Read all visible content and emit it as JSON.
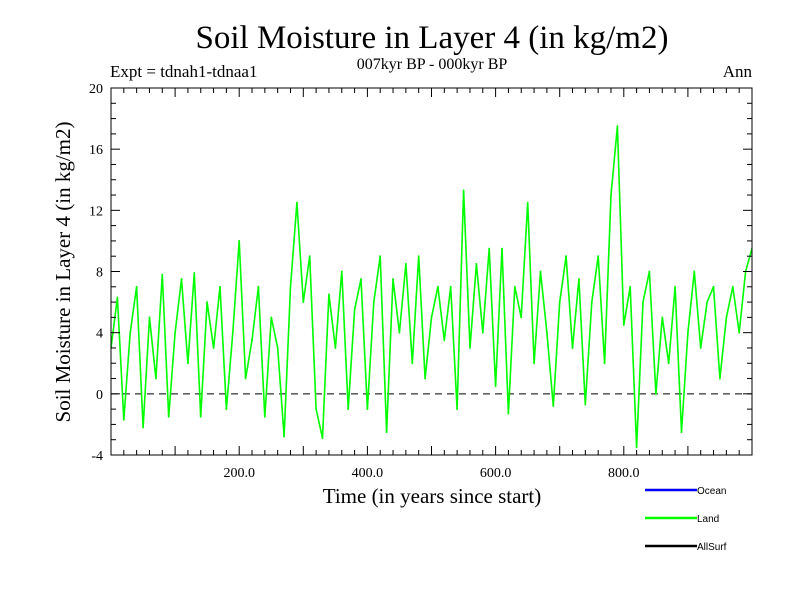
{
  "chart_data": {
    "type": "line",
    "title": "Soil Moisture in Layer 4 (in kg/m2)",
    "subtitle": "007kyr BP - 000kyr BP",
    "experiment": "Expt = tdnah1-tdnaa1",
    "season": "Ann",
    "xlabel": "Time (in years since start)",
    "ylabel": "Soil Moisture in Layer 4 (in kg/m2)",
    "xlim": [
      0,
      1000
    ],
    "ylim": [
      -4,
      20
    ],
    "x_ticks": [
      200,
      400,
      600,
      800
    ],
    "x_tick_labels": [
      "200.0",
      "400.0",
      "600.0",
      "800.0"
    ],
    "y_ticks": [
      -4,
      0,
      4,
      8,
      12,
      16,
      20
    ],
    "y_tick_labels": [
      "-4",
      "0",
      "4",
      "8",
      "12",
      "16",
      "20"
    ],
    "reference_line": 0,
    "legend": [
      {
        "name": "Ocean",
        "color": "#0000ff"
      },
      {
        "name": "Land",
        "color": "#00ff00"
      },
      {
        "name": "AllSurf",
        "color": "#000000"
      }
    ],
    "series": [
      {
        "name": "Land",
        "color": "#00ff00",
        "x": [
          0,
          10,
          20,
          30,
          40,
          50,
          60,
          70,
          80,
          90,
          100,
          110,
          120,
          130,
          140,
          150,
          160,
          170,
          180,
          190,
          200,
          210,
          220,
          230,
          240,
          250,
          260,
          270,
          280,
          290,
          300,
          310,
          320,
          330,
          340,
          350,
          360,
          370,
          380,
          390,
          400,
          410,
          420,
          430,
          440,
          450,
          460,
          470,
          480,
          490,
          500,
          510,
          520,
          530,
          540,
          550,
          560,
          570,
          580,
          590,
          600,
          610,
          620,
          630,
          640,
          650,
          660,
          670,
          680,
          690,
          700,
          710,
          720,
          730,
          740,
          750,
          760,
          770,
          780,
          790,
          800,
          810,
          820,
          830,
          840,
          850,
          860,
          870,
          880,
          890,
          900,
          910,
          920,
          930,
          940,
          950,
          960,
          970,
          980,
          990,
          1000
        ],
        "values": [
          3,
          6.3,
          -1.7,
          4,
          7,
          -2.2,
          5,
          1,
          7.8,
          -1.5,
          4,
          7.5,
          2,
          7.9,
          -1.5,
          6,
          3,
          7,
          -1,
          4,
          10,
          1,
          3.5,
          7,
          -1.5,
          5,
          3,
          -2.8,
          7,
          12.5,
          6,
          9,
          -1,
          -2.9,
          6.5,
          3,
          8,
          -1,
          5.5,
          7.5,
          -1,
          6,
          9,
          -2.5,
          7.5,
          4,
          8.5,
          2,
          9,
          1,
          5,
          7,
          3.5,
          7,
          -1,
          13.3,
          3,
          8.5,
          4,
          9.5,
          0.5,
          9.5,
          -1.3,
          7,
          5,
          12.5,
          2,
          8,
          4,
          -0.8,
          6,
          9,
          3,
          7.5,
          -0.7,
          6,
          9,
          2,
          13,
          17.5,
          4.5,
          7,
          -3.5,
          6,
          8,
          0,
          5,
          2,
          7,
          -2.5,
          4,
          8,
          3,
          6,
          7,
          1,
          5,
          7,
          4,
          8,
          9.5
        ]
      }
    ]
  }
}
